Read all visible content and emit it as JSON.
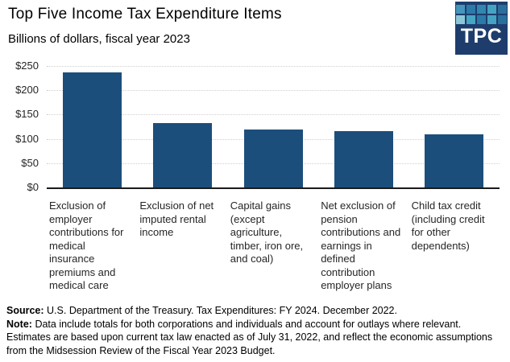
{
  "header": {
    "title": "Top Five Income Tax Expenditure Items",
    "subtitle": "Billions of dollars, fiscal year 2023"
  },
  "logo": {
    "text": "TPC",
    "bg_color": "#1e3d6d",
    "grid_colors": [
      [
        "#4695bb",
        "#2b7aa8",
        "#3187b0",
        "#44a3c2",
        "#2a6e9c"
      ],
      [
        "#8cc7d7",
        "#46a6c3",
        "#2b7aa8",
        "#44a3c2",
        "#2a6e9c"
      ]
    ]
  },
  "chart_data": {
    "type": "bar",
    "title": "Top Five Income Tax Expenditure Items",
    "subtitle": "Billions of dollars, fiscal year 2023",
    "unit": "billions of dollars",
    "categories": [
      "Exclusion of employer contributions for medical insurance premiums and medical care",
      "Exclusion of net imputed rental income",
      "Capital gains (except agriculture, timber, iron ore, and coal)",
      "Net exclusion of pension contributions and earnings in defined contribution employer plans",
      "Child tax credit (including credit for other dependents)"
    ],
    "values": [
      237,
      132,
      119,
      116,
      109
    ],
    "bar_color": "#1c4e7c",
    "ylim": [
      0,
      250
    ],
    "ytick_values": [
      0,
      50,
      100,
      150,
      200,
      250
    ],
    "ytick_labels": [
      "$0",
      "$50",
      "$100",
      "$150",
      "$200",
      "$250"
    ],
    "grid": true,
    "gridline_color": "#cfcfcf",
    "legend": "none",
    "xlabel": "",
    "ylabel": ""
  },
  "footer": {
    "source_label": "Source:",
    "source_text": "U.S. Department of the Treasury. Tax Expenditures: FY 2024. December 2022.",
    "note_label": "Note:",
    "note_text": "Data include totals for both corporations and individuals and account for outlays where relevant. Estimates are based upon current tax law enacted as of July 31, 2022, and reflect the economic assumptions from the Midsession Review of the Fiscal Year 2023 Budget."
  }
}
